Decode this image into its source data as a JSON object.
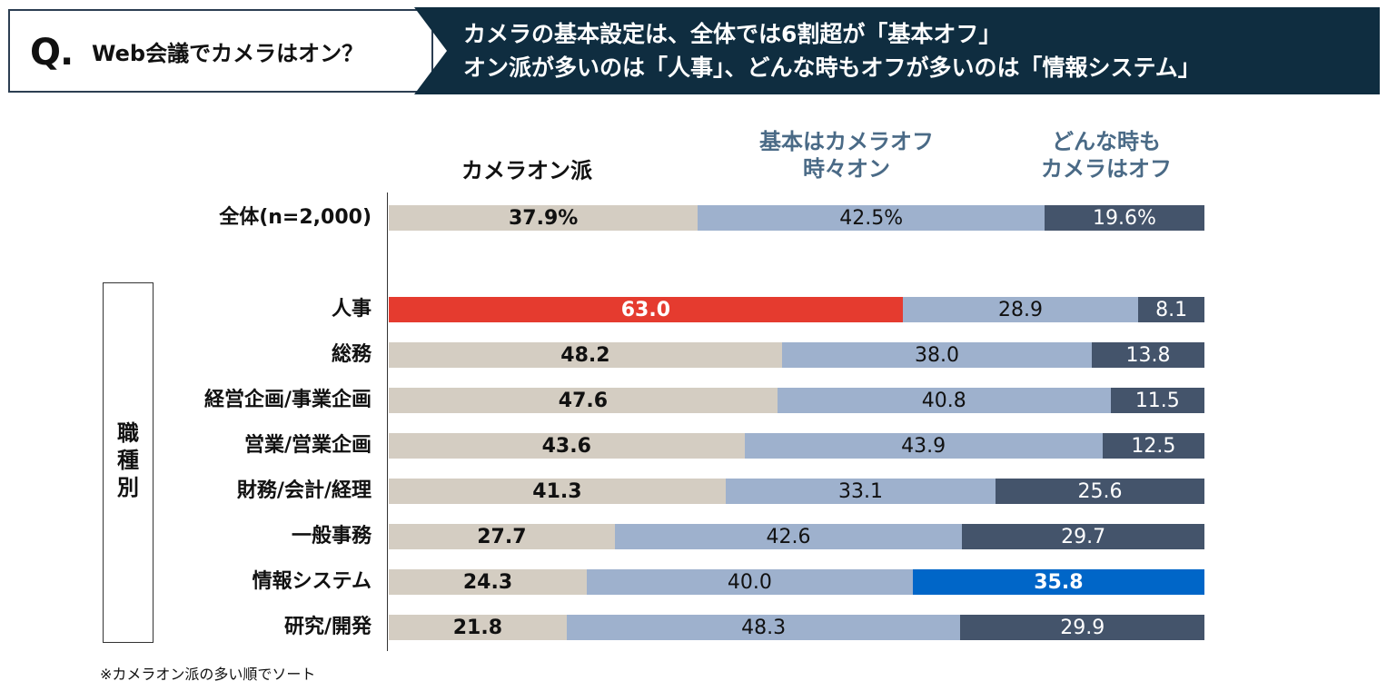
{
  "header": {
    "q_mark": "Q.",
    "question": "Web会議でカメラはオン？",
    "headline_line1": "カメラの基本設定は、全体では6割超が「基本オフ」",
    "headline_line2": "オン派が多いのは「人事」、どんな時もオフが多いのは「情報システム」"
  },
  "group_label": "職種別",
  "footnote": "※カメラオン派の多い順でソート",
  "chart_data": {
    "type": "bar",
    "orientation": "horizontal",
    "stacked": true,
    "percent_scale": true,
    "series": [
      {
        "name": "カメラオン派",
        "color": "#d4cdc2",
        "values": [
          37.9,
          63.0,
          48.2,
          47.6,
          43.6,
          41.3,
          27.7,
          24.3,
          21.8
        ]
      },
      {
        "name_lines": [
          "基本はカメラオフ",
          "時々オン"
        ],
        "name": "基本はカメラオフ 時々オン",
        "color": "#9eb1cd",
        "values": [
          42.5,
          28.9,
          38.0,
          40.8,
          43.9,
          33.1,
          42.6,
          40.0,
          48.3
        ]
      },
      {
        "name_lines": [
          "どんな時も",
          "カメラはオフ"
        ],
        "name": "どんな時も カメラはオフ",
        "color": "#44546b",
        "values": [
          19.6,
          8.1,
          13.8,
          11.5,
          12.5,
          25.6,
          29.7,
          35.8,
          29.9
        ]
      }
    ],
    "categories": [
      "全体(n=2,000)",
      "人事",
      "総務",
      "経営企画/事業企画",
      "営業/営業企画",
      "財務/会計/経理",
      "一般事務",
      "情報システム",
      "研究/開発"
    ],
    "data_labels": [
      [
        "37.9%",
        "42.5%",
        "19.6%"
      ],
      [
        "63.0",
        "28.9",
        "8.1"
      ],
      [
        "48.2",
        "38.0",
        "13.8"
      ],
      [
        "47.6",
        "40.8",
        "11.5"
      ],
      [
        "43.6",
        "43.9",
        "12.5"
      ],
      [
        "41.3",
        "33.1",
        "25.6"
      ],
      [
        "27.7",
        "42.6",
        "29.7"
      ],
      [
        "24.3",
        "40.0",
        "35.8"
      ],
      [
        "21.8",
        "48.3",
        "29.9"
      ]
    ],
    "highlights": [
      {
        "category": "人事",
        "series_index": 0,
        "color": "#e53b2f"
      },
      {
        "category": "情報システム",
        "series_index": 2,
        "color": "#0066c8"
      }
    ],
    "xlim": [
      0,
      100
    ]
  }
}
